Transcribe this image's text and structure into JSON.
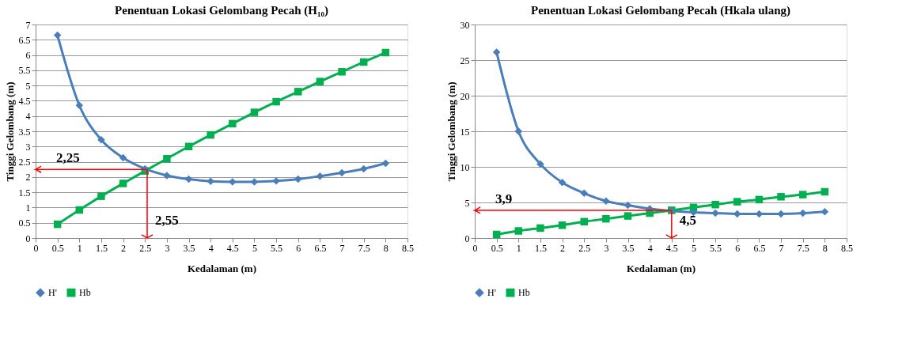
{
  "chart_data": [
    {
      "type": "line",
      "title": "Penentuan Lokasi Gelombang Pecah (H₁₀)",
      "xlabel": "Kedalaman (m)",
      "ylabel": "Tinggi Gelombang (m)",
      "x": [
        0.5,
        1,
        1.5,
        2,
        2.5,
        3,
        3.5,
        4,
        4.5,
        5,
        5.5,
        6,
        6.5,
        7,
        7.5,
        8
      ],
      "series": [
        {
          "name": "H'",
          "color": "#4a7ebb",
          "marker": "diamond",
          "values": [
            6.65,
            4.35,
            3.22,
            2.63,
            2.27,
            2.05,
            1.93,
            1.86,
            1.84,
            1.84,
            1.87,
            1.93,
            2.03,
            2.14,
            2.27,
            2.45
          ]
        },
        {
          "name": "Hb",
          "color": "#00b050",
          "marker": "square",
          "values": [
            0.45,
            0.92,
            1.37,
            1.79,
            2.2,
            2.6,
            3.0,
            3.38,
            3.75,
            4.12,
            4.47,
            4.8,
            5.13,
            5.45,
            5.77,
            6.08
          ]
        }
      ],
      "xlim": [
        0,
        8.5
      ],
      "xticks": [
        0,
        0.5,
        1,
        1.5,
        2,
        2.5,
        3,
        3.5,
        4,
        4.5,
        5,
        5.5,
        6,
        6.5,
        7,
        7.5,
        8,
        8.5
      ],
      "ylim": [
        0,
        7
      ],
      "yticks": [
        0,
        0.5,
        1,
        1.5,
        2,
        2.5,
        3,
        3.5,
        4,
        4.5,
        5,
        5.5,
        6,
        6.5,
        7
      ],
      "ref_lines": [
        {
          "axis": "y",
          "value": 2.25,
          "label": "2,25",
          "color": "#ff0000"
        },
        {
          "axis": "x",
          "value": 2.55,
          "label": "2,55",
          "color": "#ff0000"
        }
      ],
      "grid": "y",
      "legend": "bottom",
      "line_style": "solid"
    },
    {
      "type": "line",
      "title": "Penentuan Lokasi Gelombang Pecah (Hkala ulang)",
      "xlabel": "Kedalaman (m)",
      "ylabel": "Tinggi Gelombang (m)",
      "x": [
        0.5,
        1,
        1.5,
        2,
        2.5,
        3,
        3.5,
        4,
        4.5,
        5,
        5.5,
        6,
        6.5,
        7,
        7.5,
        8
      ],
      "series": [
        {
          "name": "H'",
          "color": "#4a7ebb",
          "marker": "diamond",
          "values": [
            26.1,
            15.0,
            10.4,
            7.8,
            6.3,
            5.2,
            4.6,
            4.1,
            3.8,
            3.6,
            3.5,
            3.4,
            3.4,
            3.4,
            3.5,
            3.7
          ]
        },
        {
          "name": "Hb",
          "color": "#00b050",
          "marker": "square",
          "values": [
            0.5,
            1.0,
            1.4,
            1.8,
            2.3,
            2.7,
            3.1,
            3.5,
            3.9,
            4.3,
            4.7,
            5.1,
            5.4,
            5.8,
            6.1,
            6.5
          ]
        }
      ],
      "xlim": [
        0,
        8.5
      ],
      "xticks": [
        0,
        0.5,
        1,
        1.5,
        2,
        2.5,
        3,
        3.5,
        4,
        4.5,
        5,
        5.5,
        6,
        6.5,
        7,
        7.5,
        8,
        8.5
      ],
      "ylim": [
        0,
        30
      ],
      "yticks": [
        0,
        5,
        10,
        15,
        20,
        25,
        30
      ],
      "ref_lines": [
        {
          "axis": "y",
          "value": 3.9,
          "label": "3,9",
          "color": "#ff0000"
        },
        {
          "axis": "x",
          "value": 4.5,
          "label": "4,5",
          "color": "#ff0000"
        }
      ],
      "grid": "y",
      "legend": "bottom",
      "line_style": "solid"
    }
  ]
}
